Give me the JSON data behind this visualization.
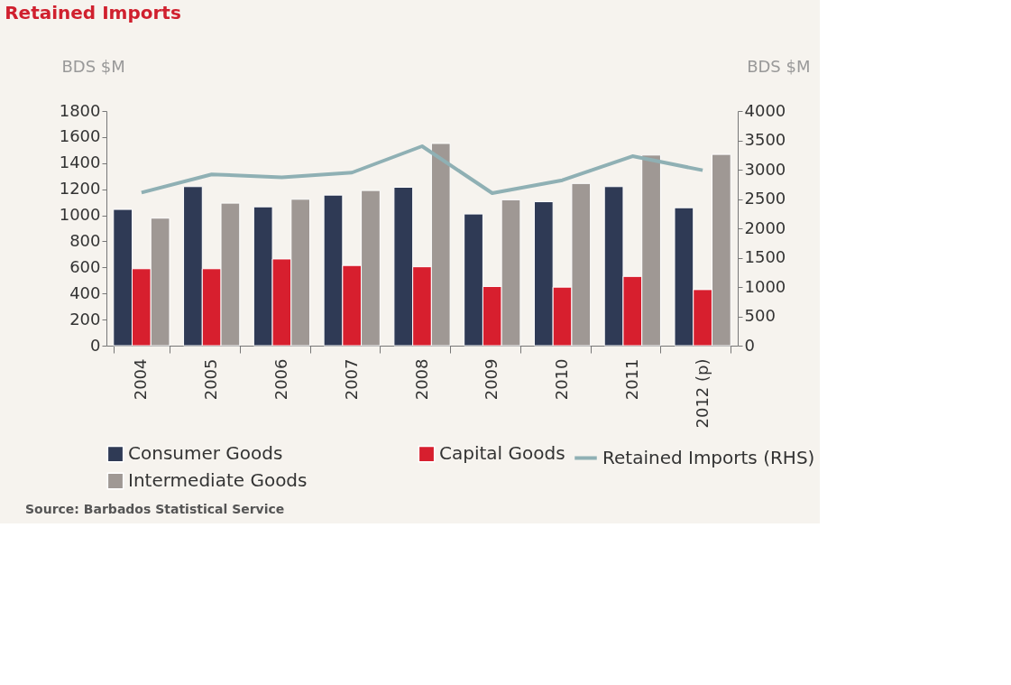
{
  "chart_data": {
    "type": "bar",
    "title": "Retained Imports",
    "ylabel": "BDS $M",
    "y2label": "BDS $M",
    "categories": [
      "2004",
      "2005",
      "2006",
      "2007",
      "2008",
      "2009",
      "2010",
      "2011",
      "2012 (p)"
    ],
    "series": [
      {
        "name": "Consumer Goods",
        "color": "#2f3a55",
        "values": [
          1045,
          1220,
          1065,
          1155,
          1215,
          1010,
          1104,
          1220,
          1058
        ]
      },
      {
        "name": "Capital Goods",
        "color": "#d71f2e",
        "values": [
          590,
          590,
          665,
          615,
          605,
          454,
          449,
          531,
          430
        ]
      },
      {
        "name": "Intermediate Goods",
        "color": "#9f9894",
        "values": [
          978,
          1093,
          1123,
          1190,
          1551,
          1119,
          1244,
          1462,
          1467
        ]
      },
      {
        "name": "Retained Imports (RHS)",
        "color": "#8fb0b4",
        "type": "line",
        "axis": "y2",
        "values": [
          2610,
          2920,
          2870,
          2950,
          3400,
          2600,
          2820,
          3230,
          2990
        ]
      }
    ],
    "ylim": [
      0,
      1800
    ],
    "yticks": [
      0,
      200,
      400,
      600,
      800,
      1000,
      1200,
      1400,
      1600,
      1800
    ],
    "y2lim": [
      0,
      4000
    ],
    "y2ticks": [
      0,
      500,
      1000,
      1500,
      2000,
      2500,
      3000,
      3500,
      4000
    ],
    "grid": false,
    "legend": "bottom",
    "annotations": [
      "Source: Barbados Statistical Service"
    ]
  }
}
